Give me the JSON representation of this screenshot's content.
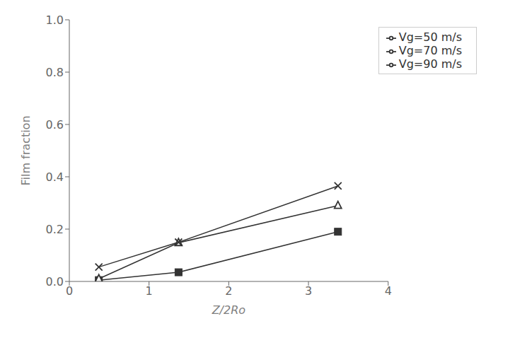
{
  "chart_data": {
    "type": "line",
    "x_label": "Z/2Ro",
    "y_label": "Film fraction",
    "series": [
      {
        "name": "Vg=50 m/s",
        "color": "#333333",
        "marker": "square",
        "x": [
          0.37,
          1.37,
          3.37
        ],
        "values": [
          0.005,
          0.035,
          0.19
        ]
      },
      {
        "name": "Vg=70 m/s",
        "color": "#333333",
        "marker": "triangle-open",
        "x": [
          0.37,
          1.37,
          3.37
        ],
        "values": [
          0.01,
          0.148,
          0.29
        ]
      },
      {
        "name": "Vg=90 m/s",
        "color": "#333333",
        "marker": "x",
        "x": [
          0.37,
          1.37,
          3.37
        ],
        "values": [
          0.055,
          0.15,
          0.365
        ]
      }
    ],
    "xlim": [
      0,
      4
    ],
    "xticks": [
      0,
      1,
      2,
      3,
      4
    ],
    "ylim": [
      0,
      1
    ],
    "yticks": [
      {
        "value": 0,
        "label": "0.0"
      },
      0.2,
      0.4,
      0.6,
      0.8,
      {
        "value": 1,
        "label": "1.0"
      }
    ],
    "grid": false,
    "legend": "upper right"
  }
}
